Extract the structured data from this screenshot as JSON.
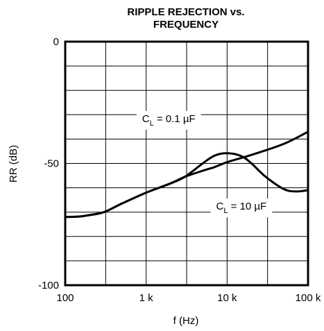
{
  "chart_data": {
    "type": "line",
    "title": "RIPPLE REJECTION vs.",
    "title_line2": "FREQUENCY",
    "xlabel": "f (Hz)",
    "ylabel": "RR (dB)",
    "x_scale": "log",
    "xlim": [
      100,
      100000
    ],
    "ylim": [
      -100,
      0
    ],
    "x_ticks": [
      {
        "value": 100,
        "label": "100"
      },
      {
        "value": 1000,
        "label": "1 k"
      },
      {
        "value": 10000,
        "label": "10 k"
      },
      {
        "value": 100000,
        "label": "100 k"
      }
    ],
    "y_ticks": [
      {
        "value": 0,
        "label": "0"
      },
      {
        "value": -50,
        "label": "-50"
      },
      {
        "value": -100,
        "label": "-100"
      }
    ],
    "grid": true,
    "series": [
      {
        "name": "C_L = 0.1 µF",
        "x": [
          100,
          150,
          200,
          300,
          500,
          1000,
          2000,
          3000,
          5000,
          7000,
          10000,
          20000,
          50000,
          100000
        ],
        "y": [
          -72,
          -71.8,
          -71.2,
          -70,
          -66.5,
          -62,
          -58.2,
          -55.5,
          -53,
          -51.5,
          -49.5,
          -46.5,
          -42,
          -37
        ]
      },
      {
        "name": "C_L = 10 µF",
        "x": [
          100,
          150,
          200,
          300,
          500,
          1000,
          2000,
          3000,
          5000,
          7000,
          10000,
          15000,
          20000,
          30000,
          50000,
          70000,
          100000
        ],
        "y": [
          -72,
          -71.8,
          -71.2,
          -70,
          -66.5,
          -62,
          -58.2,
          -55.5,
          -50,
          -46.8,
          -45.8,
          -47,
          -50,
          -55.5,
          -60.5,
          -61.5,
          -61
        ]
      }
    ],
    "annotations": [
      {
        "prefix": "C",
        "sub": "L",
        "rest": " = 0.1 µF",
        "x": 1900,
        "y": -33
      },
      {
        "prefix": "C",
        "sub": "L",
        "rest": " = 10 µF",
        "x": 15000,
        "y": -69
      }
    ]
  }
}
